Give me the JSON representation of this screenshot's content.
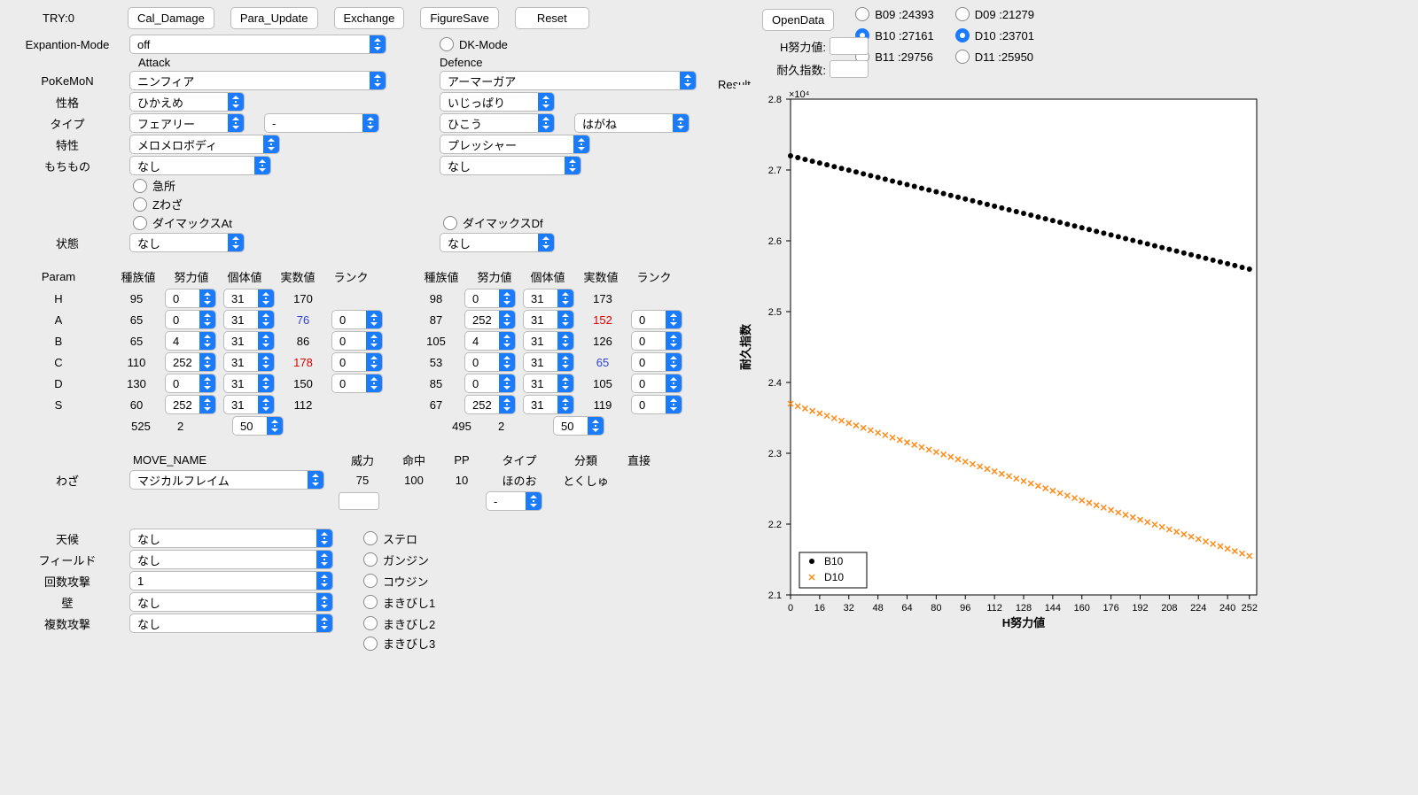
{
  "header": {
    "try_label": "TRY:0",
    "buttons": {
      "cal": "Cal_Damage",
      "para": "Para_Update",
      "exch": "Exchange",
      "fig": "FigureSave",
      "reset": "Reset",
      "open": "OpenData"
    }
  },
  "labels": {
    "expansion": "Expantion-Mode",
    "attack": "Attack",
    "defence": "Defence",
    "pokemon": "PoKeMoN",
    "nature": "性格",
    "type": "タイプ",
    "ability": "特性",
    "item": "もちもの",
    "state": "状態",
    "param": "Param",
    "move": "わざ",
    "weather": "天候",
    "field": "フィールド",
    "times": "回数攻撃",
    "wall": "壁",
    "multi": "複数攻撃",
    "dk": "DK-Mode",
    "result": "Result",
    "h_ev": "H努力値:",
    "dur_idx": "耐久指数:"
  },
  "expansion": {
    "value": "off"
  },
  "attack": {
    "pokemon": "ニンフィア",
    "nature": "ひかえめ",
    "type1": "フェアリー",
    "type2": "-",
    "ability": "メロメロボディ",
    "item": "なし",
    "crit": "急所",
    "zmove": "Zわざ",
    "dmaxA": "ダイマックスAt",
    "state": "なし"
  },
  "defence": {
    "pokemon": "アーマーガア",
    "nature": "いじっぱり",
    "type1": "ひこう",
    "type2": "はがね",
    "ability": "プレッシャー",
    "item": "なし",
    "dmaxD": "ダイマックスDf",
    "state": "なし"
  },
  "param_headers": [
    "種族値",
    "努力値",
    "個体値",
    "実数値",
    "ランク"
  ],
  "param_stats": [
    "H",
    "A",
    "B",
    "C",
    "D",
    "S"
  ],
  "atk_params": {
    "H": {
      "base": "95",
      "ev": "0",
      "iv": "31",
      "real": "170",
      "rank": null,
      "cls": ""
    },
    "A": {
      "base": "65",
      "ev": "0",
      "iv": "31",
      "real": "76",
      "rank": "0",
      "cls": "col-blue"
    },
    "B": {
      "base": "65",
      "ev": "4",
      "iv": "31",
      "real": "86",
      "rank": "0",
      "cls": ""
    },
    "C": {
      "base": "110",
      "ev": "252",
      "iv": "31",
      "real": "178",
      "rank": "0",
      "cls": "col-red"
    },
    "D": {
      "base": "130",
      "ev": "0",
      "iv": "31",
      "real": "150",
      "rank": "0",
      "cls": ""
    },
    "S": {
      "base": "60",
      "ev": "252",
      "iv": "31",
      "real": "112",
      "rank": null,
      "cls": ""
    }
  },
  "atk_totals": {
    "base": "525",
    "ev": "2",
    "level": "50"
  },
  "def_params": {
    "H": {
      "base": "98",
      "ev": "0",
      "iv": "31",
      "real": "173",
      "rank": null,
      "cls": ""
    },
    "A": {
      "base": "87",
      "ev": "252",
      "iv": "31",
      "real": "152",
      "rank": "0",
      "cls": "col-red"
    },
    "B": {
      "base": "105",
      "ev": "4",
      "iv": "31",
      "real": "126",
      "rank": "0",
      "cls": ""
    },
    "C": {
      "base": "53",
      "ev": "0",
      "iv": "31",
      "real": "65",
      "rank": "0",
      "cls": "col-blue"
    },
    "D": {
      "base": "85",
      "ev": "0",
      "iv": "31",
      "real": "105",
      "rank": "0",
      "cls": ""
    },
    "S": {
      "base": "67",
      "ev": "252",
      "iv": "31",
      "real": "119",
      "rank": "0",
      "cls": ""
    }
  },
  "def_totals": {
    "base": "495",
    "ev": "2",
    "level": "50"
  },
  "move_headers": {
    "name": "MOVE_NAME",
    "power": "威力",
    "acc": "命中",
    "pp": "PP",
    "type": "タイプ",
    "class": "分類",
    "contact": "直接"
  },
  "move": {
    "name": "マジカルフレイム",
    "power": "75",
    "acc": "100",
    "pp": "10",
    "type": "ほのお",
    "type2": "-",
    "class": "とくしゅ",
    "contact": ""
  },
  "env": {
    "weather": "なし",
    "field": "なし",
    "times": "1",
    "wall": "なし",
    "multi": "なし"
  },
  "hazards": {
    "sr": "ステロ",
    "gj": "ガンジン",
    "kj": "コウジン",
    "sp1": "まきびし1",
    "sp2": "まきびし2",
    "sp3": "まきびし3"
  },
  "radio_groups": [
    {
      "id": "B09",
      "label": "B09 :24393",
      "on": false
    },
    {
      "id": "B10",
      "label": "B10 :27161",
      "on": true
    },
    {
      "id": "B11",
      "label": "B11 :29756",
      "on": false
    },
    {
      "id": "D09",
      "label": "D09 :21279",
      "on": false
    },
    {
      "id": "D10",
      "label": "D10 :23701",
      "on": true
    },
    {
      "id": "D11",
      "label": "D11 :25950",
      "on": false
    }
  ],
  "chart": {
    "title_x": "H努力値",
    "title_y": "耐久指数",
    "y_exponent": "×10⁴",
    "xlim": [
      0,
      256
    ],
    "ylim": [
      2.1,
      2.8
    ],
    "xticks": [
      0,
      16,
      32,
      48,
      64,
      80,
      96,
      112,
      128,
      144,
      160,
      176,
      192,
      208,
      224,
      240,
      252
    ],
    "yticks": [
      2.1,
      2.2,
      2.3,
      2.4,
      2.5,
      2.6,
      2.7,
      2.8
    ],
    "bg": "#ffffff",
    "border": "#000000",
    "legend": [
      {
        "label": "B10",
        "marker": "circle",
        "color": "#000000"
      },
      {
        "label": "D10",
        "marker": "x",
        "color": "#ff8c1a"
      }
    ],
    "series": {
      "B10": {
        "color": "#000000",
        "marker": "circle",
        "y0": 2.72,
        "y1": 2.56
      },
      "D10": {
        "color": "#ff8c1a",
        "marker": "x",
        "y0": 2.37,
        "y1": 2.155
      }
    },
    "nx": 64
  }
}
